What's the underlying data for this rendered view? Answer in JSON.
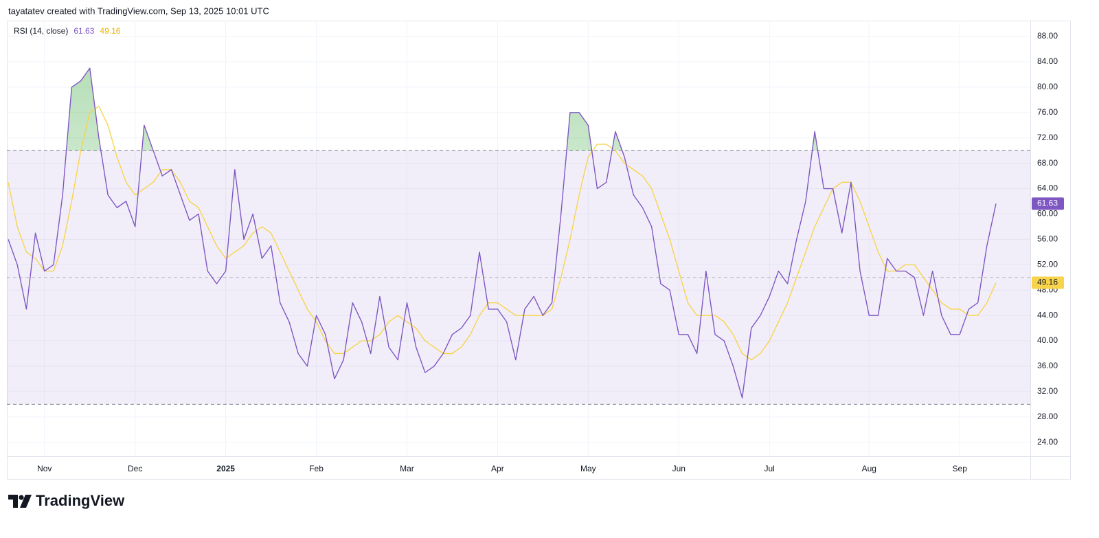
{
  "header": {
    "credit": "tayatatev created with TradingView.com, Sep 13, 2025 10:01 UTC"
  },
  "footer": {
    "brand": "TradingView"
  },
  "chart_data": {
    "type": "line",
    "title": "RSI (14, close)",
    "categories": [
      null,
      null,
      null,
      null,
      "Nov",
      null,
      null,
      null,
      null,
      null,
      null,
      null,
      null,
      null,
      "Dec",
      null,
      null,
      null,
      null,
      null,
      null,
      null,
      null,
      null,
      "2025",
      null,
      null,
      null,
      null,
      null,
      null,
      null,
      null,
      null,
      "Feb",
      null,
      null,
      null,
      null,
      null,
      null,
      null,
      null,
      null,
      "Mar",
      null,
      null,
      null,
      null,
      null,
      null,
      null,
      null,
      null,
      "Apr",
      null,
      null,
      null,
      null,
      null,
      null,
      null,
      null,
      null,
      "May",
      null,
      null,
      null,
      null,
      null,
      null,
      null,
      null,
      null,
      "Jun",
      null,
      null,
      null,
      null,
      null,
      null,
      null,
      null,
      null,
      "Jul",
      null,
      null,
      null,
      null,
      null,
      null,
      null,
      null,
      null,
      null,
      "Aug",
      null,
      null,
      null,
      null,
      null,
      null,
      null,
      null,
      null,
      "Sep",
      null,
      null,
      null,
      null
    ],
    "series": [
      {
        "color": "#7e57c2",
        "values": [
          56,
          52,
          45,
          57,
          51,
          52,
          63,
          80,
          81,
          83,
          72,
          63,
          61,
          62,
          58,
          74,
          70,
          66,
          67,
          63,
          59,
          60,
          51,
          49,
          51,
          67,
          56,
          60,
          53,
          55,
          46,
          43,
          38,
          36,
          44,
          41,
          34,
          37,
          46,
          43,
          38,
          47,
          39,
          37,
          46,
          39,
          35,
          36,
          38,
          41,
          42,
          44,
          54,
          45,
          45,
          43,
          37,
          45,
          47,
          44,
          46,
          60,
          76,
          76,
          74,
          64,
          65,
          73,
          69,
          63,
          61,
          58,
          49,
          48,
          41,
          41,
          38,
          51,
          41,
          40,
          36,
          31,
          42,
          44,
          47,
          51,
          49,
          56,
          62,
          73,
          64,
          64,
          57,
          65,
          51,
          44,
          44,
          53,
          51,
          51,
          50,
          44,
          51,
          44,
          41,
          41,
          45,
          46,
          55,
          61.63
        ]
      },
      {
        "color": "#f7d44c",
        "values": [
          65,
          58,
          54,
          53,
          51,
          51,
          55,
          62,
          70,
          76,
          77,
          74,
          69,
          65,
          63,
          64,
          65,
          67,
          67,
          65,
          62,
          61,
          58,
          55,
          53,
          54,
          55,
          57,
          58,
          57,
          54,
          51,
          48,
          45,
          43,
          40,
          38,
          38,
          39,
          40,
          40,
          41,
          43,
          44,
          43,
          42,
          40,
          39,
          38,
          38,
          39,
          41,
          44,
          46,
          46,
          45,
          44,
          44,
          44,
          44,
          45,
          50,
          56,
          63,
          69,
          71,
          71,
          70,
          68,
          67,
          66,
          64,
          60,
          56,
          51,
          46,
          44,
          44,
          44,
          43,
          41,
          38,
          37,
          38,
          40,
          43,
          46,
          50,
          54,
          58,
          61,
          64,
          65,
          65,
          62,
          58,
          54,
          51,
          51,
          52,
          52,
          50,
          48,
          46,
          45,
          45,
          44,
          44,
          46,
          49.16
        ]
      }
    ],
    "ylim": [
      21.8,
      90.5
    ],
    "yticks": [
      {
        "value": 24,
        "label": "24.00"
      },
      {
        "value": 28,
        "label": "28.00"
      },
      {
        "value": 32,
        "label": "32.00"
      },
      {
        "value": 36,
        "label": "36.00"
      },
      {
        "value": 40,
        "label": "40.00"
      },
      {
        "value": 44,
        "label": "44.00"
      },
      {
        "value": 48,
        "label": "48.00"
      },
      {
        "value": 52,
        "label": "52.00"
      },
      {
        "value": 56,
        "label": "56.00"
      },
      {
        "value": 60,
        "label": "60.00"
      },
      {
        "value": 64,
        "label": "64.00"
      },
      {
        "value": 68,
        "label": "68.00"
      },
      {
        "value": 72,
        "label": "72.00"
      },
      {
        "value": 76,
        "label": "76.00"
      },
      {
        "value": 80,
        "label": "80.00"
      },
      {
        "value": 84,
        "label": "84.00"
      },
      {
        "value": 88,
        "label": "88.00"
      }
    ],
    "bands": [
      30,
      70
    ],
    "midline": 50,
    "grid": true
  }
}
